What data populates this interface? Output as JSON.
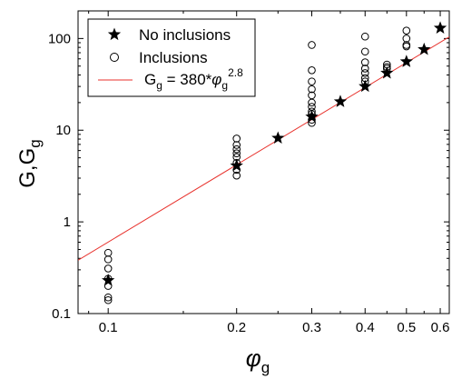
{
  "chart_data": {
    "type": "scatter",
    "xscale": "log",
    "yscale": "log",
    "xlim": [
      0.085,
      0.63
    ],
    "ylim": [
      0.1,
      200
    ],
    "grid": false,
    "legend_position": "top-left",
    "xlabel": {
      "symbol": "φ",
      "subscript": "g"
    },
    "ylabel": {
      "base": "G,G",
      "subscript": "g"
    },
    "x_tick_labels": [
      {
        "value": 0.1,
        "label": "0.1"
      },
      {
        "value": 0.2,
        "label": "0.2"
      },
      {
        "value": 0.3,
        "label": "0.3"
      },
      {
        "value": 0.4,
        "label": "0.4"
      },
      {
        "value": 0.5,
        "label": "0.5"
      },
      {
        "value": 0.6,
        "label": "0.6"
      }
    ],
    "y_tick_labels": [
      {
        "value": 0.1,
        "label": "0.1"
      },
      {
        "value": 1,
        "label": "1"
      },
      {
        "value": 10,
        "label": "10"
      },
      {
        "value": 100,
        "label": "100"
      }
    ],
    "series": [
      {
        "name": "No inclusions",
        "marker": "star",
        "color": "#000000",
        "points": [
          {
            "x": 0.1,
            "y": 0.23
          },
          {
            "x": 0.2,
            "y": 4.1
          },
          {
            "x": 0.25,
            "y": 8.2
          },
          {
            "x": 0.3,
            "y": 14
          },
          {
            "x": 0.35,
            "y": 20.5
          },
          {
            "x": 0.4,
            "y": 30
          },
          {
            "x": 0.45,
            "y": 42
          },
          {
            "x": 0.5,
            "y": 56
          },
          {
            "x": 0.55,
            "y": 76
          },
          {
            "x": 0.6,
            "y": 130
          }
        ]
      },
      {
        "name": "Inclusions",
        "marker": "open-circle",
        "color": "#000000",
        "points": [
          {
            "x": 0.1,
            "y": 0.46
          },
          {
            "x": 0.1,
            "y": 0.39
          },
          {
            "x": 0.1,
            "y": 0.31
          },
          {
            "x": 0.1,
            "y": 0.24
          },
          {
            "x": 0.1,
            "y": 0.2
          },
          {
            "x": 0.1,
            "y": 0.15
          },
          {
            "x": 0.1,
            "y": 0.14
          },
          {
            "x": 0.2,
            "y": 8.1
          },
          {
            "x": 0.2,
            "y": 6.9
          },
          {
            "x": 0.2,
            "y": 6.2
          },
          {
            "x": 0.2,
            "y": 5.6
          },
          {
            "x": 0.2,
            "y": 5.1
          },
          {
            "x": 0.2,
            "y": 4.4
          },
          {
            "x": 0.2,
            "y": 3.7
          },
          {
            "x": 0.2,
            "y": 3.2
          },
          {
            "x": 0.3,
            "y": 85
          },
          {
            "x": 0.3,
            "y": 45
          },
          {
            "x": 0.3,
            "y": 34
          },
          {
            "x": 0.3,
            "y": 28
          },
          {
            "x": 0.3,
            "y": 24
          },
          {
            "x": 0.3,
            "y": 20
          },
          {
            "x": 0.3,
            "y": 18
          },
          {
            "x": 0.3,
            "y": 16
          },
          {
            "x": 0.3,
            "y": 15
          },
          {
            "x": 0.3,
            "y": 13
          },
          {
            "x": 0.3,
            "y": 12
          },
          {
            "x": 0.4,
            "y": 105
          },
          {
            "x": 0.4,
            "y": 72
          },
          {
            "x": 0.4,
            "y": 55
          },
          {
            "x": 0.4,
            "y": 47
          },
          {
            "x": 0.4,
            "y": 42
          },
          {
            "x": 0.4,
            "y": 37
          },
          {
            "x": 0.4,
            "y": 34
          },
          {
            "x": 0.45,
            "y": 52
          },
          {
            "x": 0.45,
            "y": 49
          },
          {
            "x": 0.45,
            "y": 47
          },
          {
            "x": 0.5,
            "y": 122
          },
          {
            "x": 0.5,
            "y": 100
          },
          {
            "x": 0.5,
            "y": 85
          },
          {
            "x": 0.5,
            "y": 82
          }
        ]
      }
    ],
    "fit": {
      "name": "Gg = 380*φg^2.8",
      "color": "#e8322d",
      "coefficient": 380,
      "exponent": 2.8,
      "legend_label": {
        "lhs": "G",
        "lhs_sub": "g",
        "equals_coef": " = 380*",
        "var": "φ",
        "var_sub": "g",
        "exp": "2.8"
      }
    }
  }
}
